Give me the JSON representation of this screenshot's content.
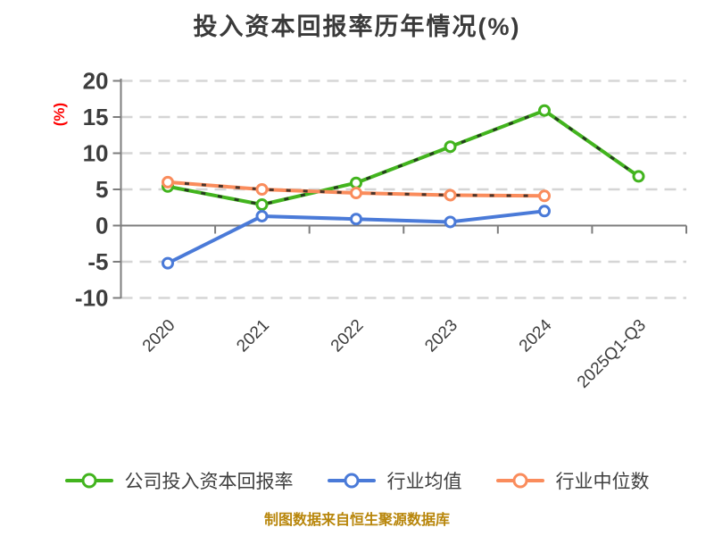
{
  "title": "投入资本回报率历年情况(%)",
  "footer": "制图数据来自恒生聚源数据库",
  "colors": {
    "company_series": "#42b41e",
    "industry_avg_series": "#4a7ad8",
    "industry_median_series": "#fa8c5c",
    "axis_text": "#3d3d3d",
    "percent_label": "#fe0000",
    "source_note": "#b8860b",
    "gridline": "#d5d5d5"
  },
  "chart_data": {
    "type": "line",
    "title": "投入资本回报率历年情况(%)",
    "ylabel": "(%)",
    "xlabel": "",
    "categories": [
      "2020",
      "2021",
      "2022",
      "2023",
      "2024",
      "2025Q1-Q3"
    ],
    "yticks": [
      20,
      15,
      10,
      5,
      0,
      -5,
      -10
    ],
    "ylim": [
      -10,
      20
    ],
    "grid": "horizontal dashed",
    "legend_position": "bottom",
    "x_tick_label_rotation": 45,
    "series": [
      {
        "name": "公司投入资本回报率",
        "color": "#42b41e",
        "marker": "circle-white-fill",
        "dash_overlay": true,
        "values": [
          5.4,
          2.9,
          5.9,
          10.9,
          15.9,
          6.8
        ]
      },
      {
        "name": "行业均值",
        "color": "#4a7ad8",
        "marker": "circle-white-fill",
        "dash_overlay": false,
        "values": [
          -5.2,
          1.3,
          0.9,
          0.5,
          2.0,
          null
        ]
      },
      {
        "name": "行业中位数",
        "color": "#fa8c5c",
        "marker": "circle-white-fill",
        "dash_overlay": true,
        "values": [
          6.0,
          5.0,
          4.5,
          4.2,
          4.1,
          null
        ]
      }
    ]
  }
}
